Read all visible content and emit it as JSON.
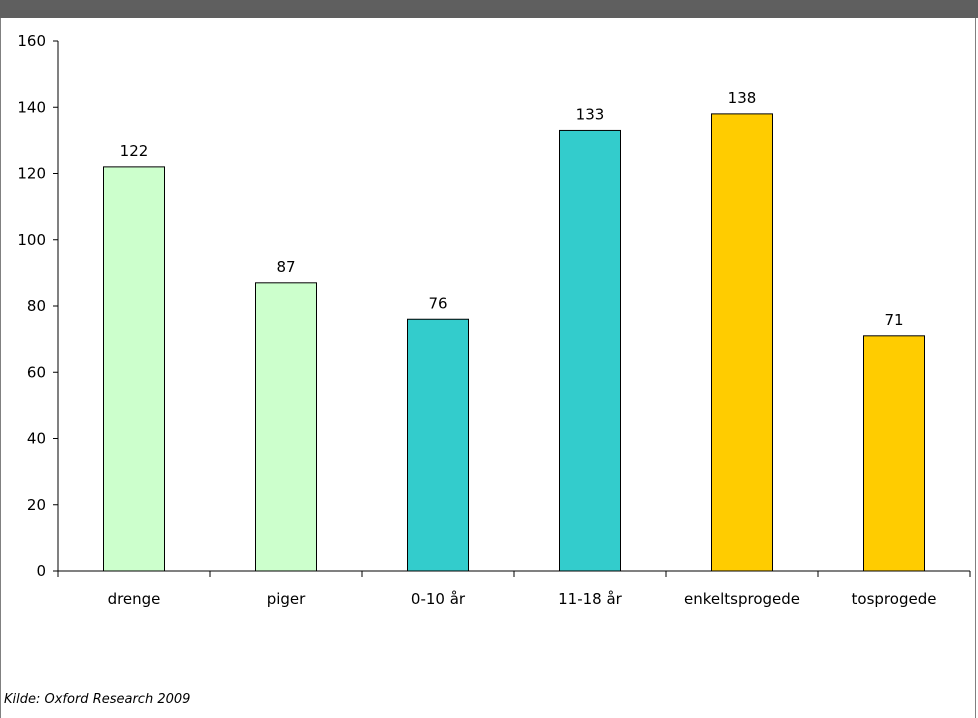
{
  "page": {
    "title": "",
    "source": "Kilde: Oxford Research 2009"
  },
  "chart_data": {
    "type": "bar",
    "title": "",
    "xlabel": "",
    "ylabel": "",
    "ylim": [
      0,
      160
    ],
    "yticks": [
      0,
      20,
      40,
      60,
      80,
      100,
      120,
      140,
      160
    ],
    "grid": false,
    "legend": "none",
    "categories": [
      "drenge",
      "piger",
      "0-10 år",
      "11-18 år",
      "enkeltsprogede",
      "tosprogede"
    ],
    "values": [
      122,
      87,
      76,
      133,
      138,
      71
    ],
    "data_labels": [
      "122",
      "87",
      "76",
      "133",
      "138",
      "71"
    ],
    "colors": [
      "#ccffcc",
      "#ccffcc",
      "#33cccc",
      "#33cccc",
      "#ffcc00",
      "#ffcc00"
    ]
  }
}
